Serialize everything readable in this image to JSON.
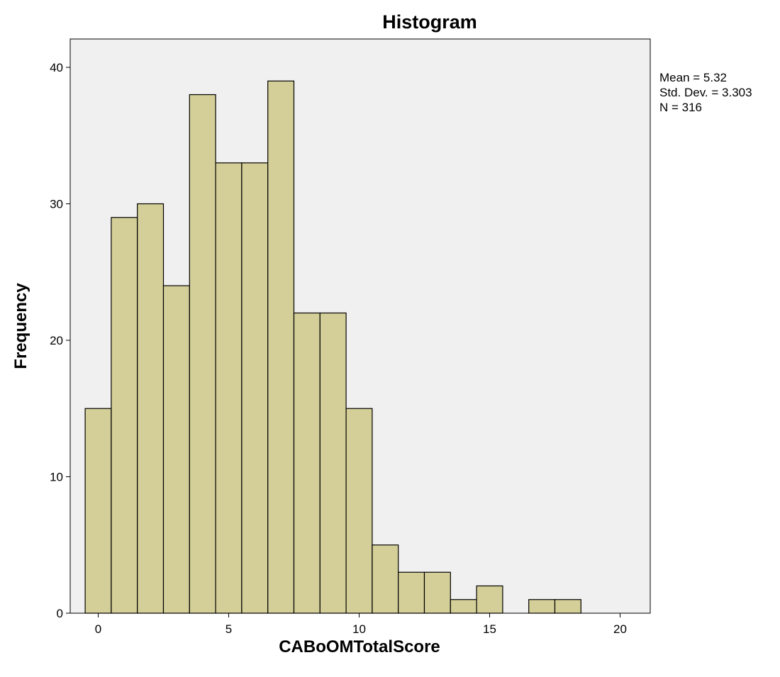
{
  "chart_data": {
    "type": "bar",
    "title": "Histogram",
    "xlabel": "CABoOMTotalScore",
    "ylabel": "Frequency",
    "xlim": [
      -1,
      21
    ],
    "ylim": [
      0,
      42
    ],
    "x_ticks": [
      0,
      5,
      10,
      15,
      20
    ],
    "y_ticks": [
      0,
      10,
      20,
      30,
      40
    ],
    "bin_width": 1,
    "bins": [
      {
        "x": 0,
        "value": 15
      },
      {
        "x": 1,
        "value": 29
      },
      {
        "x": 2,
        "value": 30
      },
      {
        "x": 3,
        "value": 24
      },
      {
        "x": 4,
        "value": 38
      },
      {
        "x": 5,
        "value": 33
      },
      {
        "x": 6,
        "value": 33
      },
      {
        "x": 7,
        "value": 39
      },
      {
        "x": 8,
        "value": 22
      },
      {
        "x": 9,
        "value": 22
      },
      {
        "x": 10,
        "value": 15
      },
      {
        "x": 11,
        "value": 5
      },
      {
        "x": 12,
        "value": 3
      },
      {
        "x": 13,
        "value": 3
      },
      {
        "x": 14,
        "value": 1
      },
      {
        "x": 15,
        "value": 2
      },
      {
        "x": 16,
        "value": 0
      },
      {
        "x": 17,
        "value": 1
      },
      {
        "x": 18,
        "value": 1
      }
    ],
    "stats": [
      "Mean = 5.32",
      "Std. Dev. = 3.303",
      "N = 316"
    ],
    "grid": false,
    "colors": {
      "bar_fill": "#d4cf98",
      "bar_stroke": "#000000",
      "plot_background": "#f0f0f0"
    }
  }
}
